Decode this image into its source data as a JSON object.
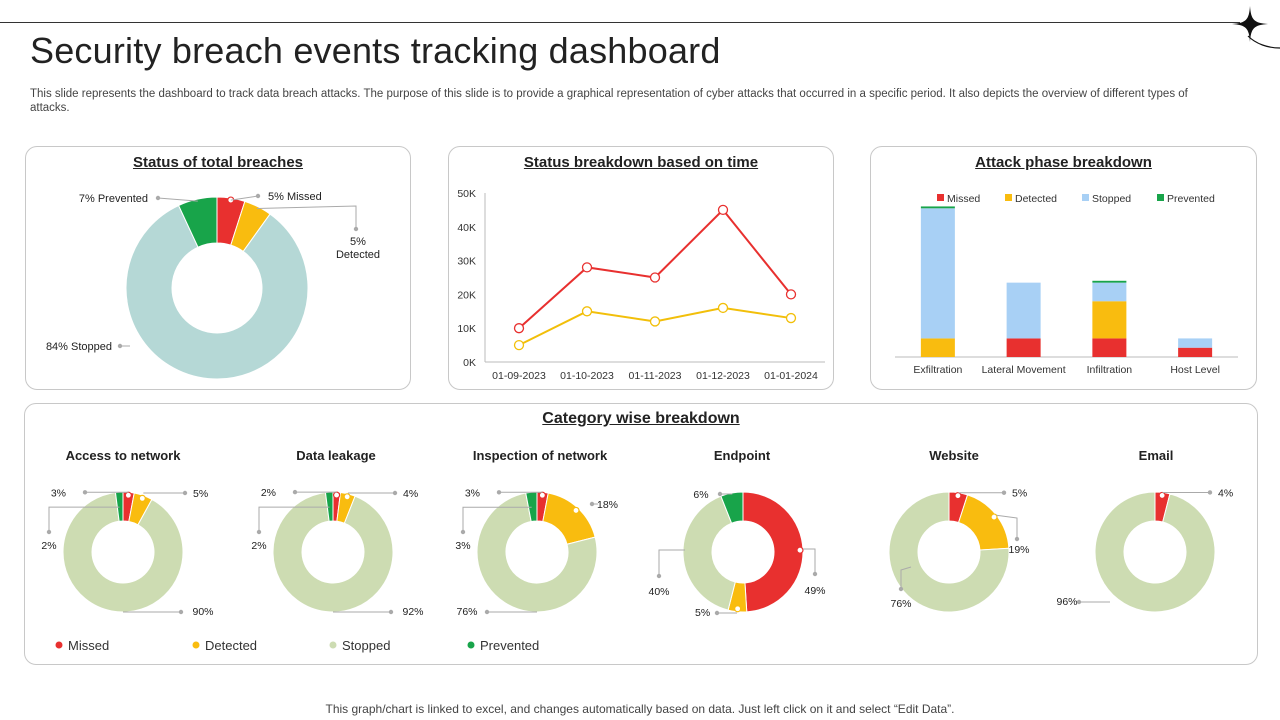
{
  "header": {
    "title": "Security breach events tracking dashboard",
    "subtitle": "This slide represents the dashboard to track data breach attacks. The purpose of this slide is to provide a graphical representation of cyber attacks that occurred in a specific period. It also depicts the overview of different types of attacks."
  },
  "footer": {
    "note": "This graph/chart is linked to excel,  and changes automatically based on data. Just left click on it and select “Edit Data”."
  },
  "colors": {
    "missed": "#e8302f",
    "detected": "#f9bc0f",
    "stopped_light": "#b5d8d6",
    "stopped_blue": "#a8d0f5",
    "stopped_green": "#cddcb2",
    "prevented": "#18a44a",
    "line_detected": "#f2bf0a"
  },
  "icons": {
    "corner": "four-point-star-icon"
  },
  "chart_data": [
    {
      "id": "status_total",
      "type": "pie",
      "title": "Status of total breaches",
      "categories": [
        "Missed",
        "Detected",
        "Stopped",
        "Prevented"
      ],
      "values": [
        5,
        5,
        84,
        7
      ],
      "labels": {
        "missed": "5% Missed",
        "detected_pct": "5%",
        "detected_name": "Detected",
        "stopped": "84% Stopped",
        "prevented": "7% Prevented"
      }
    },
    {
      "id": "status_time",
      "type": "line",
      "title": "Status breakdown based on time",
      "x": [
        "01-09-2023",
        "01-10-2023",
        "01-11-2023",
        "01-12-2023",
        "01-01-2024"
      ],
      "series": [
        {
          "name": "Missed",
          "values": [
            10000,
            28000,
            25000,
            45000,
            20000
          ]
        },
        {
          "name": "Detected",
          "values": [
            5000,
            15000,
            12000,
            16000,
            13000
          ]
        }
      ],
      "ylim": [
        0,
        50000
      ],
      "yticks": [
        "0K",
        "10K",
        "20K",
        "30K",
        "40K",
        "50K"
      ]
    },
    {
      "id": "attack_phase",
      "type": "bar",
      "title": "Attack phase breakdown",
      "categories": [
        "Exfiltration",
        "Lateral Movement",
        "Infiltration",
        "Host Level"
      ],
      "legend": [
        "Missed",
        "Detected",
        "Stopped",
        "Prevented"
      ],
      "series": [
        {
          "name": "Missed",
          "values": [
            0,
            10,
            10,
            5
          ]
        },
        {
          "name": "Detected",
          "values": [
            10,
            0,
            20,
            0
          ]
        },
        {
          "name": "Stopped",
          "values": [
            70,
            30,
            10,
            5
          ]
        },
        {
          "name": "Prevented",
          "values": [
            1,
            0,
            1,
            0
          ]
        }
      ],
      "ylim": [
        0,
        85
      ]
    },
    {
      "id": "category",
      "type": "pie",
      "title": "Category wise breakdown",
      "legend": [
        "Missed",
        "Detected",
        "Stopped",
        "Prevented"
      ],
      "charts": [
        {
          "name": "Access  to network",
          "values": [
            3,
            5,
            90,
            2
          ],
          "labels": [
            "3%",
            "5%",
            "90%",
            "2%"
          ]
        },
        {
          "name": "Data leakage",
          "values": [
            2,
            4,
            92,
            2
          ],
          "labels": [
            "2%",
            "4%",
            "92%",
            "2%"
          ]
        },
        {
          "name": "Inspection of network",
          "values": [
            3,
            18,
            76,
            3
          ],
          "labels": [
            "3%",
            "18%",
            "76%",
            "3%"
          ]
        },
        {
          "name": "Endpoint",
          "values": [
            49,
            5,
            40,
            6
          ],
          "labels": [
            "49%",
            "5%",
            "40%",
            "6%"
          ]
        },
        {
          "name": "Website",
          "values": [
            5,
            19,
            76,
            0
          ],
          "labels": [
            "5%",
            "19%",
            "76%",
            ""
          ]
        },
        {
          "name": "Email",
          "values": [
            4,
            0,
            96,
            0
          ],
          "labels": [
            "4%",
            "",
            "96%",
            ""
          ]
        }
      ]
    }
  ]
}
